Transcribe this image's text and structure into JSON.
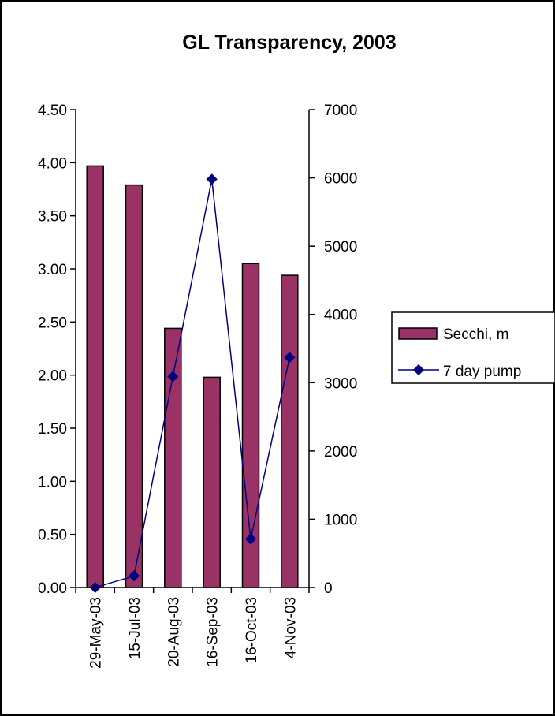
{
  "chart_data": {
    "type": "bar",
    "title": "GL Transparency, 2003",
    "categories": [
      "29-May-03",
      "15-Jul-03",
      "20-Aug-03",
      "16-Sep-03",
      "16-Oct-03",
      "4-Nov-03"
    ],
    "series": [
      {
        "name": "Secchi, m",
        "type": "bar",
        "axis": "left",
        "color": "#993366",
        "values": [
          3.97,
          3.79,
          2.44,
          1.98,
          3.05,
          2.94
        ]
      },
      {
        "name": "7 day pump",
        "type": "line",
        "axis": "right",
        "color": "#000080",
        "values": [
          0,
          170,
          3090,
          5980,
          710,
          3370
        ]
      }
    ],
    "y_left": {
      "ylim": [
        0,
        4.5
      ],
      "ticks": [
        "0.00",
        "0.50",
        "1.00",
        "1.50",
        "2.00",
        "2.50",
        "3.00",
        "3.50",
        "4.00",
        "4.50"
      ]
    },
    "y_right": {
      "ylim": [
        0,
        7000
      ],
      "ticks": [
        "0",
        "1000",
        "2000",
        "3000",
        "4000",
        "5000",
        "6000",
        "7000"
      ]
    },
    "grid": false,
    "legend_position": "right"
  }
}
